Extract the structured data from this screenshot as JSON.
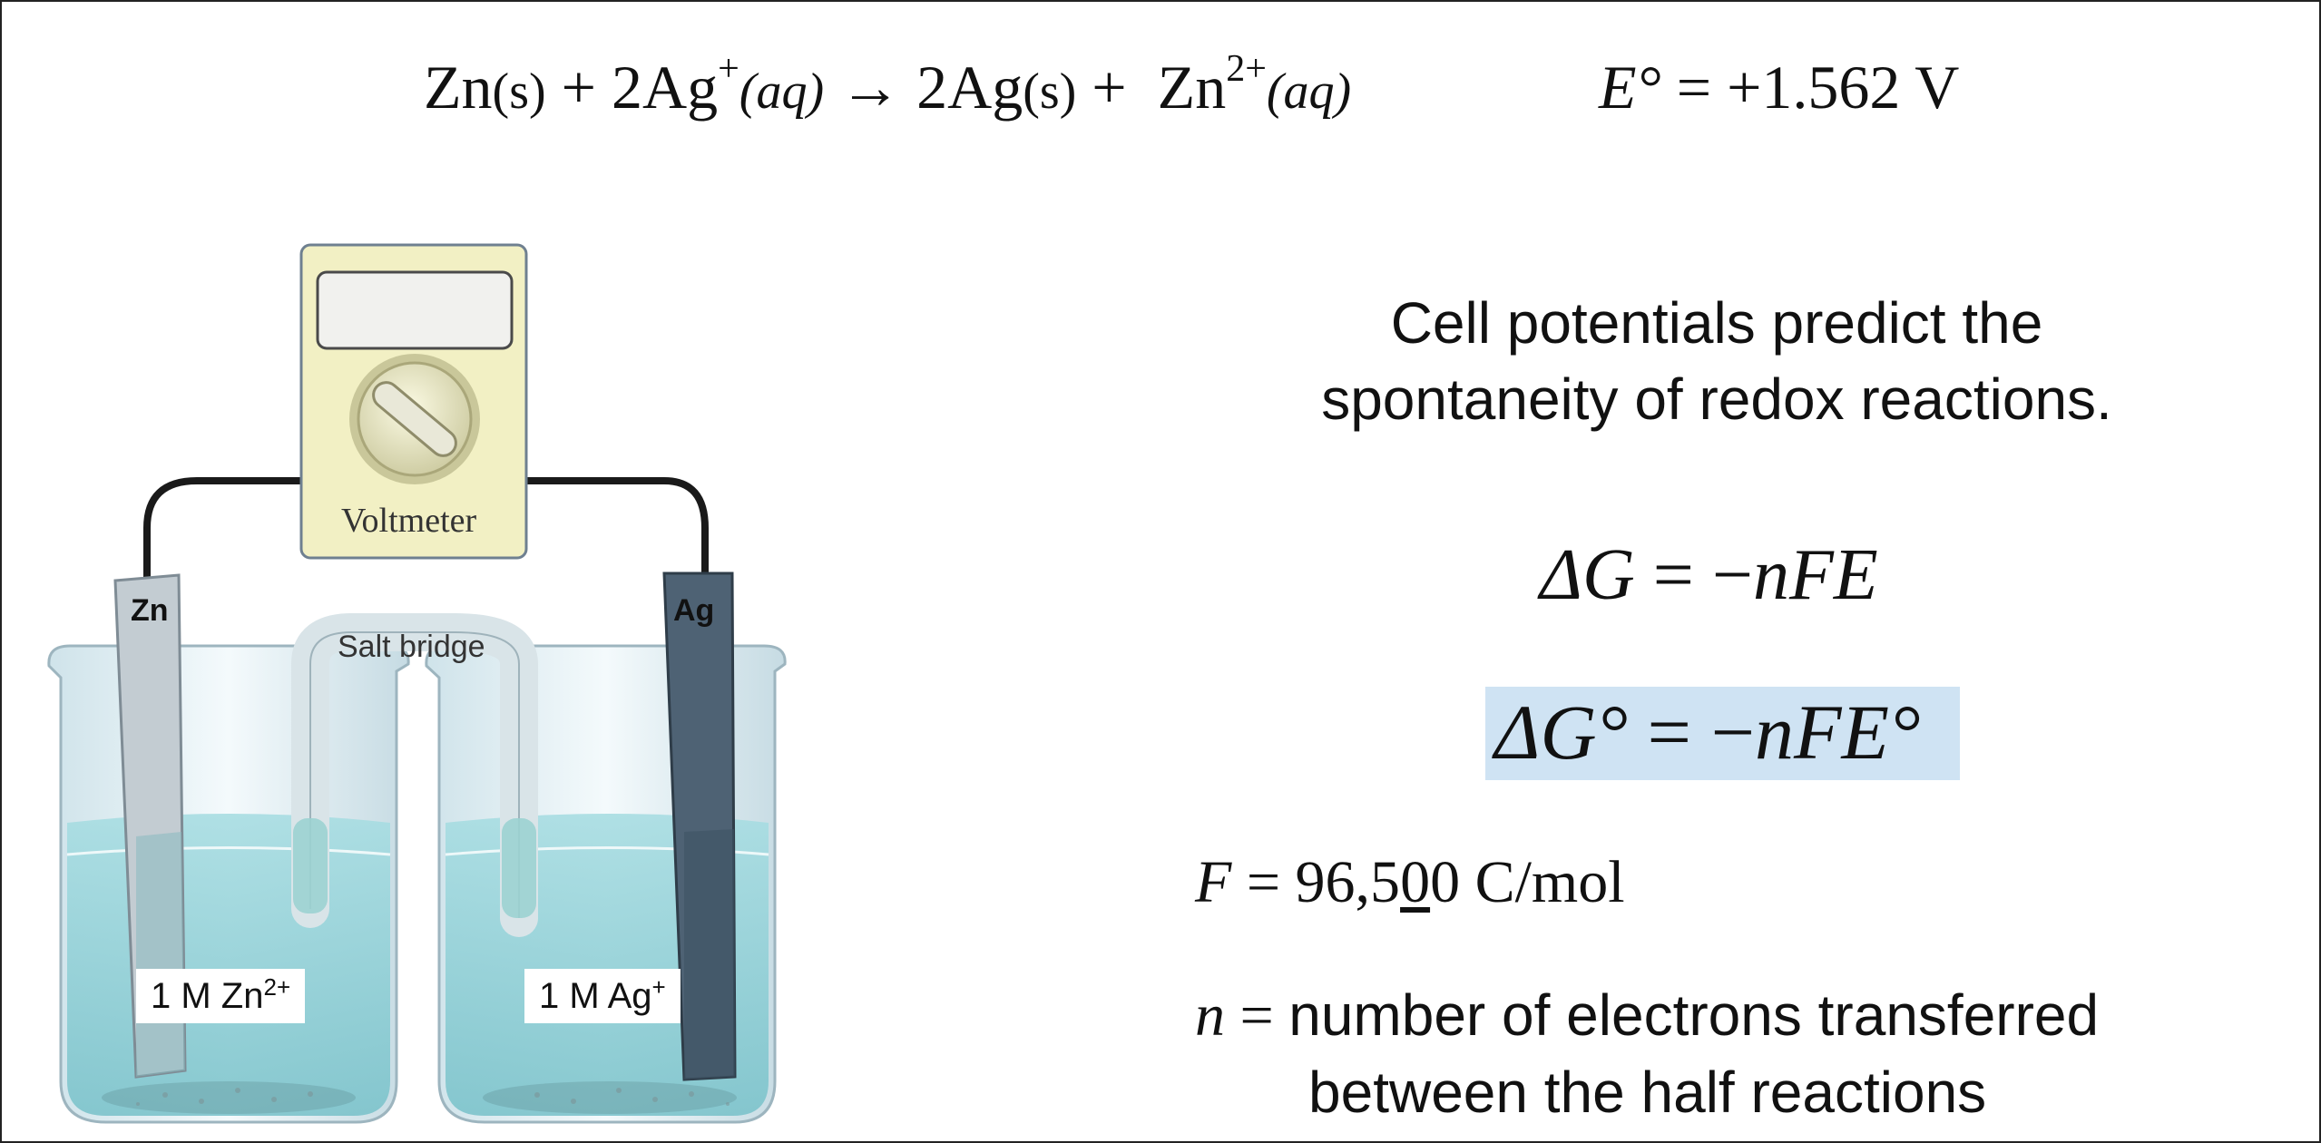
{
  "reaction": {
    "zn": "Zn",
    "zn_state": "(s)",
    "plus1": " + ",
    "ag_ion": "2Ag",
    "ag_charge": "+",
    "ag_ion_state": "(aq)",
    "arrow": " → ",
    "ag_metal": "2Ag",
    "ag_metal_state": "(s)",
    "plus2": " +  ",
    "zn_ion": "Zn",
    "zn_charge": "2+",
    "zn_ion_state": "(aq)"
  },
  "cell_potential": {
    "symbol": "E°",
    "value": " = +1.562 V"
  },
  "figure": {
    "voltmeter_label": "Voltmeter",
    "anode_label": "Zn",
    "cathode_label": "Ag",
    "salt_bridge_label": "Salt bridge",
    "left_solution": {
      "text": "1 M Zn",
      "charge": "2+"
    },
    "right_solution": {
      "text": "1 M Ag",
      "charge": "+"
    },
    "colors": {
      "solution": "#8fd0d6",
      "glass": "#e6f2f6",
      "zn_electrode": "#c3ccd2",
      "ag_electrode": "#4e6274",
      "voltmeter_body": "#f2f0c4",
      "wire": "#1a1a1a"
    },
    "icons": [
      "voltmeter-dial-icon"
    ]
  },
  "statement": {
    "line1": "Cell potentials predict the",
    "line2": "spontaneity of redox reactions."
  },
  "equations": {
    "general": {
      "lhs": "ΔG",
      "eq": " = −",
      "rhs": "nFE"
    },
    "standard": {
      "lhs": "ΔG°",
      "eq": " = −",
      "rhs": "nFE°"
    },
    "highlight_color": "#cfe3f3"
  },
  "faraday": {
    "symbol": "F",
    "eq": " = 96,5",
    "underlined_digit": "0",
    "rest": "0 C/mol"
  },
  "n_definition": {
    "symbol": "n",
    "eq": " = ",
    "line1": "number of electrons transferred",
    "line2": "between the half reactions"
  }
}
